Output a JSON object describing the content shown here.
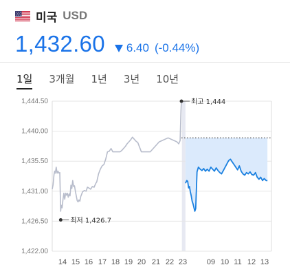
{
  "header": {
    "country": "미국",
    "currency": "USD",
    "flag_icon": "us-flag-icon"
  },
  "quote": {
    "price": "1,432.60",
    "change": "6.40",
    "change_pct": "(-0.44%)",
    "direction": "down",
    "color": "#1a73e8"
  },
  "tabs": [
    {
      "label": "1일",
      "active": true
    },
    {
      "label": "3개월",
      "active": false
    },
    {
      "label": "1년",
      "active": false
    },
    {
      "label": "3년",
      "active": false
    },
    {
      "label": "10년",
      "active": false
    }
  ],
  "chart_data": {
    "type": "line",
    "ylim": [
      1422.0,
      1444.5
    ],
    "yticks": [
      "1,444.50",
      "1,440.00",
      "1,435.50",
      "1,431.00",
      "1,426.50",
      "1,422.00"
    ],
    "ytick_values": [
      1444.5,
      1440.0,
      1435.5,
      1431.0,
      1426.5,
      1422.0
    ],
    "xticks": [
      "14",
      "15",
      "16",
      "17",
      "18",
      "19",
      "20",
      "21",
      "22",
      "23",
      "09",
      "10",
      "11",
      "12",
      "13"
    ],
    "night_icon": "moon-icon",
    "high": {
      "label": "최고 1,444",
      "value": 1444.5
    },
    "low": {
      "label": "최저 1,426.7",
      "value": 1426.7
    },
    "previous_close": 1439.0,
    "colors": {
      "previous": "#b7bccb",
      "current": "#1a80e0",
      "area": "#dbeafc",
      "night": "#e7e9f2"
    },
    "series": [
      {
        "x": [
          0.0,
          0.1,
          0.2,
          0.28,
          0.35,
          0.45,
          0.55,
          0.65,
          0.75,
          0.85,
          0.95,
          1.0,
          1.1,
          1.2,
          1.3,
          1.4,
          1.5,
          1.6,
          1.7,
          1.8,
          1.9,
          2.0,
          2.1,
          2.2,
          2.3,
          2.4,
          2.5,
          2.6,
          2.7,
          2.8,
          2.9,
          3.0,
          3.1,
          3.2,
          3.4,
          3.6,
          3.8,
          3.95,
          4.1,
          4.3,
          4.5,
          4.7,
          4.9,
          5.0,
          5.2,
          5.4,
          5.6,
          5.8,
          6.0,
          6.2,
          6.4,
          6.6,
          6.8,
          7.0,
          7.2,
          7.4,
          7.6,
          7.8,
          8.0,
          8.2,
          8.4,
          8.6,
          8.8,
          9.0,
          9.2,
          9.4,
          9.6,
          10.0,
          11.0,
          12.0,
          13.0,
          14.0,
          14.2,
          14.35,
          14.4,
          14.45,
          14.5
        ],
        "y": [
          1431.3,
          1432.0,
          1433.5,
          1434.0,
          1433.7,
          1434.6,
          1433.7,
          1434.0,
          1433.7,
          1433.8,
          1428.0,
          1428.9,
          1428.5,
          1429.7,
          1430.7,
          1429.8,
          1430.7,
          1430.4,
          1430.7,
          1430.1,
          1430.6,
          1430.3,
          1431.9,
          1431.4,
          1432.6,
          1431.7,
          1431.8,
          1431.0,
          1430.3,
          1429.6,
          1429.4,
          1429.7,
          1429.5,
          1430.2,
          1430.9,
          1431.1,
          1431.0,
          1431.6,
          1431.5,
          1431.3,
          1431.7,
          1431.6,
          1432.2,
          1432.4,
          1433.6,
          1434.3,
          1434.8,
          1435.0,
          1435.8,
          1436.9,
          1437.0,
          1437.4,
          1436.9,
          1436.9,
          1436.9,
          1436.9,
          1436.9,
          1437.1,
          1437.4,
          1437.7,
          1438.1,
          1438.4,
          1438.7,
          1439.1,
          1438.8,
          1438.5,
          1438.3,
          1436.9,
          1436.9,
          1438.4,
          1439.0,
          1438.4,
          1438.1,
          1438.6,
          1440.8,
          1443.2,
          1444.5
        ]
      },
      {
        "x": [
          14.95,
          15.1,
          15.2,
          15.3,
          15.4,
          15.5,
          15.6,
          15.7,
          15.8,
          16.0,
          16.1,
          16.25,
          16.4,
          16.6,
          16.8,
          17.0,
          17.2,
          17.4,
          17.6,
          17.8,
          18.0,
          18.2,
          18.4,
          18.6,
          18.8,
          19.0,
          19.2,
          19.4,
          19.6,
          19.8,
          20.0,
          20.2,
          20.4,
          20.6,
          20.8,
          21.0,
          21.2,
          21.4,
          21.6,
          21.8,
          22.0,
          22.2,
          22.4,
          22.6,
          22.8,
          23.0,
          23.2,
          23.4,
          23.6,
          23.8,
          24.0,
          24.15
        ],
        "y": [
          1432.2,
          1432.6,
          1432.5,
          1431.5,
          1431.7,
          1430.9,
          1430.3,
          1429.5,
          1429.1,
          1428.0,
          1428.4,
          1433.9,
          1434.6,
          1434.3,
          1434.1,
          1434.4,
          1434.0,
          1434.3,
          1434.0,
          1434.6,
          1434.3,
          1434.0,
          1434.5,
          1434.1,
          1433.8,
          1433.6,
          1434.1,
          1434.6,
          1435.1,
          1435.6,
          1435.8,
          1435.4,
          1435.0,
          1434.6,
          1434.2,
          1434.8,
          1434.0,
          1433.6,
          1433.4,
          1433.8,
          1433.6,
          1433.9,
          1433.5,
          1433.4,
          1433.8,
          1433.1,
          1432.8,
          1433.1,
          1432.6,
          1432.9,
          1432.6,
          1432.6
        ]
      }
    ]
  }
}
